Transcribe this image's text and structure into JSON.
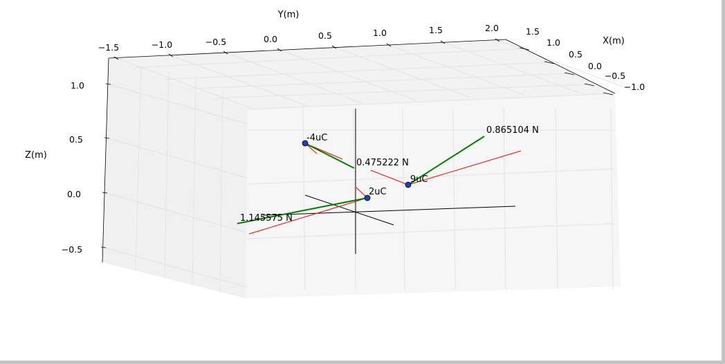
{
  "chart_data": {
    "type": "3d-scatter",
    "xlabel": "X(m)",
    "ylabel": "Y(m)",
    "zlabel": "Z(m)",
    "x_ticks": [
      "1.5",
      "1.0",
      "0.5",
      "0.0",
      "−0.5",
      "−1.0"
    ],
    "y_ticks": [
      "−1.5",
      "−1.0",
      "−0.5",
      "0.0",
      "0.5",
      "1.0",
      "1.5",
      "2.0"
    ],
    "z_ticks": [
      "1.0",
      "0.5",
      "0.0",
      "−0.5"
    ],
    "charges": [
      {
        "label": "-4uC",
        "force": 0.475222,
        "force_label": "0.475222 N"
      },
      {
        "label": "2uC",
        "force": 1.145575,
        "force_label": "1.145575 N"
      },
      {
        "label": "9uC",
        "force": 0.865104,
        "force_label": "0.865104 N"
      }
    ],
    "colors": {
      "charge_marker": "#1f3fbf",
      "net_force": "#008000",
      "component_force": "#ff0000",
      "axes": "#000000",
      "pane": "#f2f2f2",
      "grid": "#e3e3e3"
    },
    "grid": true
  }
}
